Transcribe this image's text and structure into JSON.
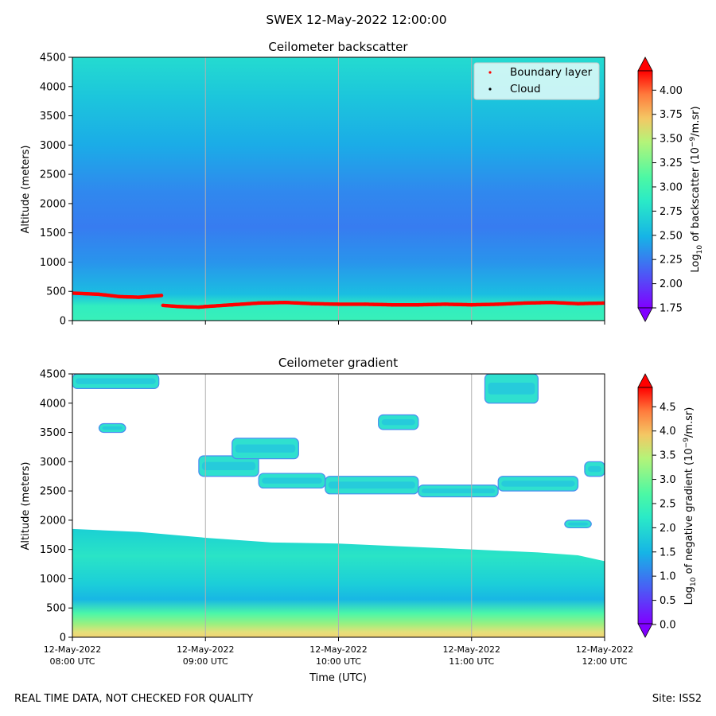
{
  "figure": {
    "suptitle": "SWEX 12-May-2022 12:00:00",
    "footer_left": "REAL TIME DATA, NOT CHECKED FOR QUALITY",
    "footer_right": "Site: ISS2"
  },
  "chart_data": [
    {
      "type": "heatmap",
      "title": "Ceilometer backscatter",
      "ylabel": "Altitude (meters)",
      "xlabel": "",
      "ylim": [
        0,
        4500
      ],
      "yticks": [
        0,
        500,
        1000,
        1500,
        2000,
        2500,
        3000,
        3500,
        4000,
        4500
      ],
      "xlim": [
        0,
        4
      ],
      "xticks": [
        0,
        1,
        2,
        3,
        4
      ],
      "xtick_labels": [],
      "grid": "vertical lines at hours",
      "colormap": "rainbow",
      "colorbar": {
        "label_prefix": "Log",
        "label_sub": "10",
        "label_mid": " of backscatter (10",
        "label_sup": "−9",
        "label_suffix": "/m.sr)",
        "range": [
          1.75,
          4.2
        ],
        "ticks": [
          "1.75",
          "2.00",
          "2.25",
          "2.50",
          "2.75",
          "3.00",
          "3.25",
          "3.50",
          "3.75",
          "4.00"
        ],
        "extend": "both"
      },
      "profile": [
        {
          "altitude": 0,
          "value": 2.95
        },
        {
          "altitude": 250,
          "value": 2.9
        },
        {
          "altitude": 450,
          "value": 2.55
        },
        {
          "altitude": 1000,
          "value": 2.35
        },
        {
          "altitude": 1600,
          "value": 2.25
        },
        {
          "altitude": 2200,
          "value": 2.3
        },
        {
          "altitude": 3000,
          "value": 2.45
        },
        {
          "altitude": 3800,
          "value": 2.6
        },
        {
          "altitude": 4500,
          "value": 2.75
        }
      ],
      "series": [
        {
          "name": "Boundary layer",
          "color": "#ff0000",
          "x": [
            0,
            0.2,
            0.35,
            0.5,
            0.67,
            0.68,
            0.8,
            0.95,
            1.0,
            1.2,
            1.4,
            1.6,
            1.8,
            2.0,
            2.2,
            2.4,
            2.6,
            2.8,
            3.0,
            3.2,
            3.4,
            3.6,
            3.8,
            4.0
          ],
          "y": [
            470,
            450,
            410,
            400,
            430,
            260,
            240,
            230,
            240,
            270,
            300,
            310,
            290,
            280,
            280,
            270,
            270,
            280,
            270,
            280,
            300,
            310,
            290,
            300
          ]
        },
        {
          "name": "Cloud",
          "color": "#000000",
          "x": [],
          "y": []
        }
      ],
      "legend": "top-right"
    },
    {
      "type": "heatmap",
      "title": "Ceilometer gradient",
      "ylabel": "Altitude (meters)",
      "xlabel": "Time (UTC)",
      "ylim": [
        0,
        4500
      ],
      "yticks": [
        0,
        500,
        1000,
        1500,
        2000,
        2500,
        3000,
        3500,
        4000,
        4500
      ],
      "xlim": [
        0,
        4
      ],
      "xticks": [
        0,
        1,
        2,
        3,
        4
      ],
      "xtick_labels": [
        [
          "12-May-2022",
          "08:00 UTC"
        ],
        [
          "12-May-2022",
          "09:00 UTC"
        ],
        [
          "12-May-2022",
          "10:00 UTC"
        ],
        [
          "12-May-2022",
          "11:00 UTC"
        ],
        [
          "12-May-2022",
          "12:00 UTC"
        ]
      ],
      "grid": "vertical lines at hours",
      "colormap": "rainbow",
      "colorbar": {
        "label_prefix": "Log",
        "label_sub": "10",
        "label_mid": " of negative gradient (10",
        "label_sup": "−9",
        "label_suffix": "/m.sr)",
        "range": [
          0,
          4.9
        ],
        "ticks": [
          "0.0",
          "0.5",
          "1.0",
          "1.5",
          "2.0",
          "2.5",
          "3.0",
          "3.5",
          "4.0",
          "4.5"
        ],
        "extend": "both"
      },
      "layer_top_altitude": [
        1850,
        1800,
        1700,
        1620,
        1600,
        1550,
        1500,
        1450,
        1400,
        1300
      ],
      "layer_top_time": [
        0,
        0.5,
        1.0,
        1.5,
        2.0,
        2.5,
        3.0,
        3.5,
        3.8,
        4.0
      ],
      "cloud_bands": [
        {
          "t0": 0.0,
          "t1": 0.65,
          "alt0": 4250,
          "alt1": 4500
        },
        {
          "t0": 0.95,
          "t1": 1.4,
          "alt0": 2750,
          "alt1": 3100
        },
        {
          "t0": 1.4,
          "t1": 1.9,
          "alt0": 2550,
          "alt1": 2800
        },
        {
          "t0": 1.9,
          "t1": 2.6,
          "alt0": 2450,
          "alt1": 2750
        },
        {
          "t0": 2.6,
          "t1": 3.2,
          "alt0": 2400,
          "alt1": 2600
        },
        {
          "t0": 3.2,
          "t1": 3.8,
          "alt0": 2500,
          "alt1": 2750
        },
        {
          "t0": 1.2,
          "t1": 1.7,
          "alt0": 3050,
          "alt1": 3400
        },
        {
          "t0": 3.1,
          "t1": 3.5,
          "alt0": 4000,
          "alt1": 4500
        },
        {
          "t0": 0.2,
          "t1": 0.4,
          "alt0": 3500,
          "alt1": 3650
        },
        {
          "t0": 2.3,
          "t1": 2.6,
          "alt0": 3550,
          "alt1": 3800
        },
        {
          "t0": 3.7,
          "t1": 3.9,
          "alt0": 1870,
          "alt1": 2000
        },
        {
          "t0": 3.85,
          "t1": 4.0,
          "alt0": 2750,
          "alt1": 3000
        }
      ]
    }
  ]
}
